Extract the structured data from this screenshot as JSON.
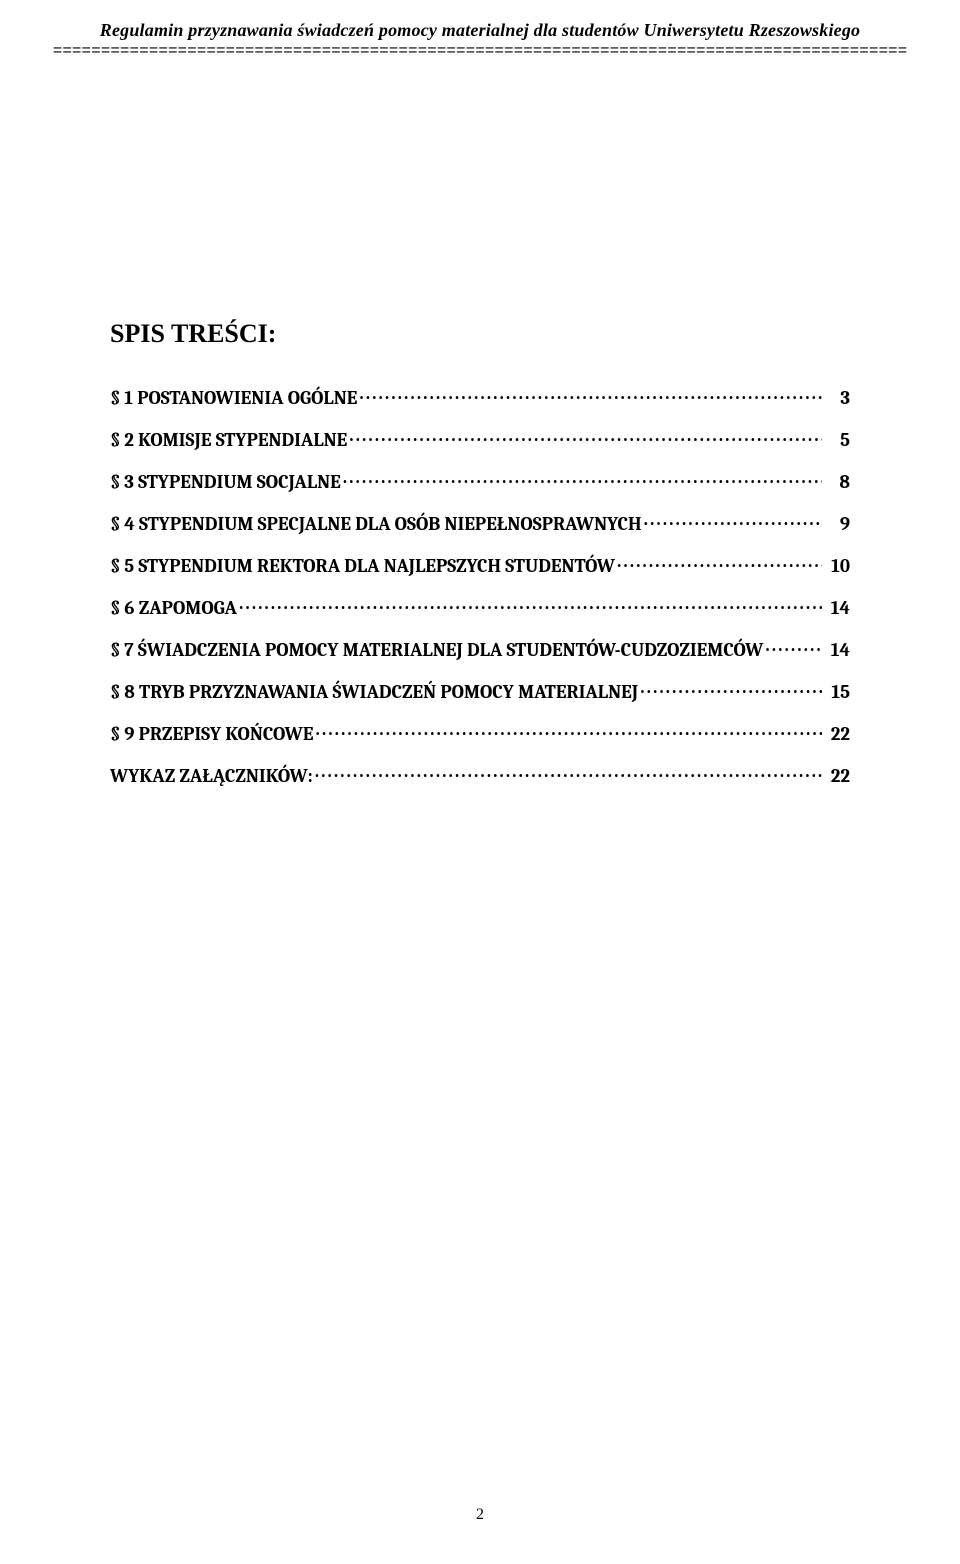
{
  "header": {
    "running_title": "Regulamin przyznawania świadczeń pomocy materialnej dla studentów Uniwersytetu Rzeszowskiego",
    "rule": "========================================================================================="
  },
  "toc": {
    "title": "SPIS TREŚCI:",
    "entries": [
      {
        "label": "§ 1 POSTANOWIENIA OGÓLNE",
        "page": "3"
      },
      {
        "label": "§ 2 KOMISJE STYPENDIALNE",
        "page": "5"
      },
      {
        "label": "§ 3 STYPENDIUM SOCJALNE",
        "page": "8"
      },
      {
        "label": "§ 4 STYPENDIUM SPECJALNE DLA OSÓB NIEPEŁNOSPRAWNYCH",
        "page": "9"
      },
      {
        "label": "§ 5 STYPENDIUM REKTORA DLA NAJLEPSZYCH STUDENTÓW",
        "page": "10"
      },
      {
        "label": "§ 6 ZAPOMOGA",
        "page": "14"
      },
      {
        "label": "§ 7 ŚWIADCZENIA POMOCY MATERIALNEJ DLA STUDENTÓW-CUDZOZIEMCÓW",
        "page": "14"
      },
      {
        "label": "§ 8 TRYB PRZYZNAWANIA ŚWIADCZEŃ POMOCY MATERIALNEJ",
        "page": "15"
      },
      {
        "label": "§ 9 PRZEPISY KOŃCOWE",
        "page": "22"
      },
      {
        "label": "WYKAZ ZAŁĄCZNIKÓW:",
        "page": "22"
      }
    ]
  },
  "footer": {
    "page_number": "2"
  }
}
